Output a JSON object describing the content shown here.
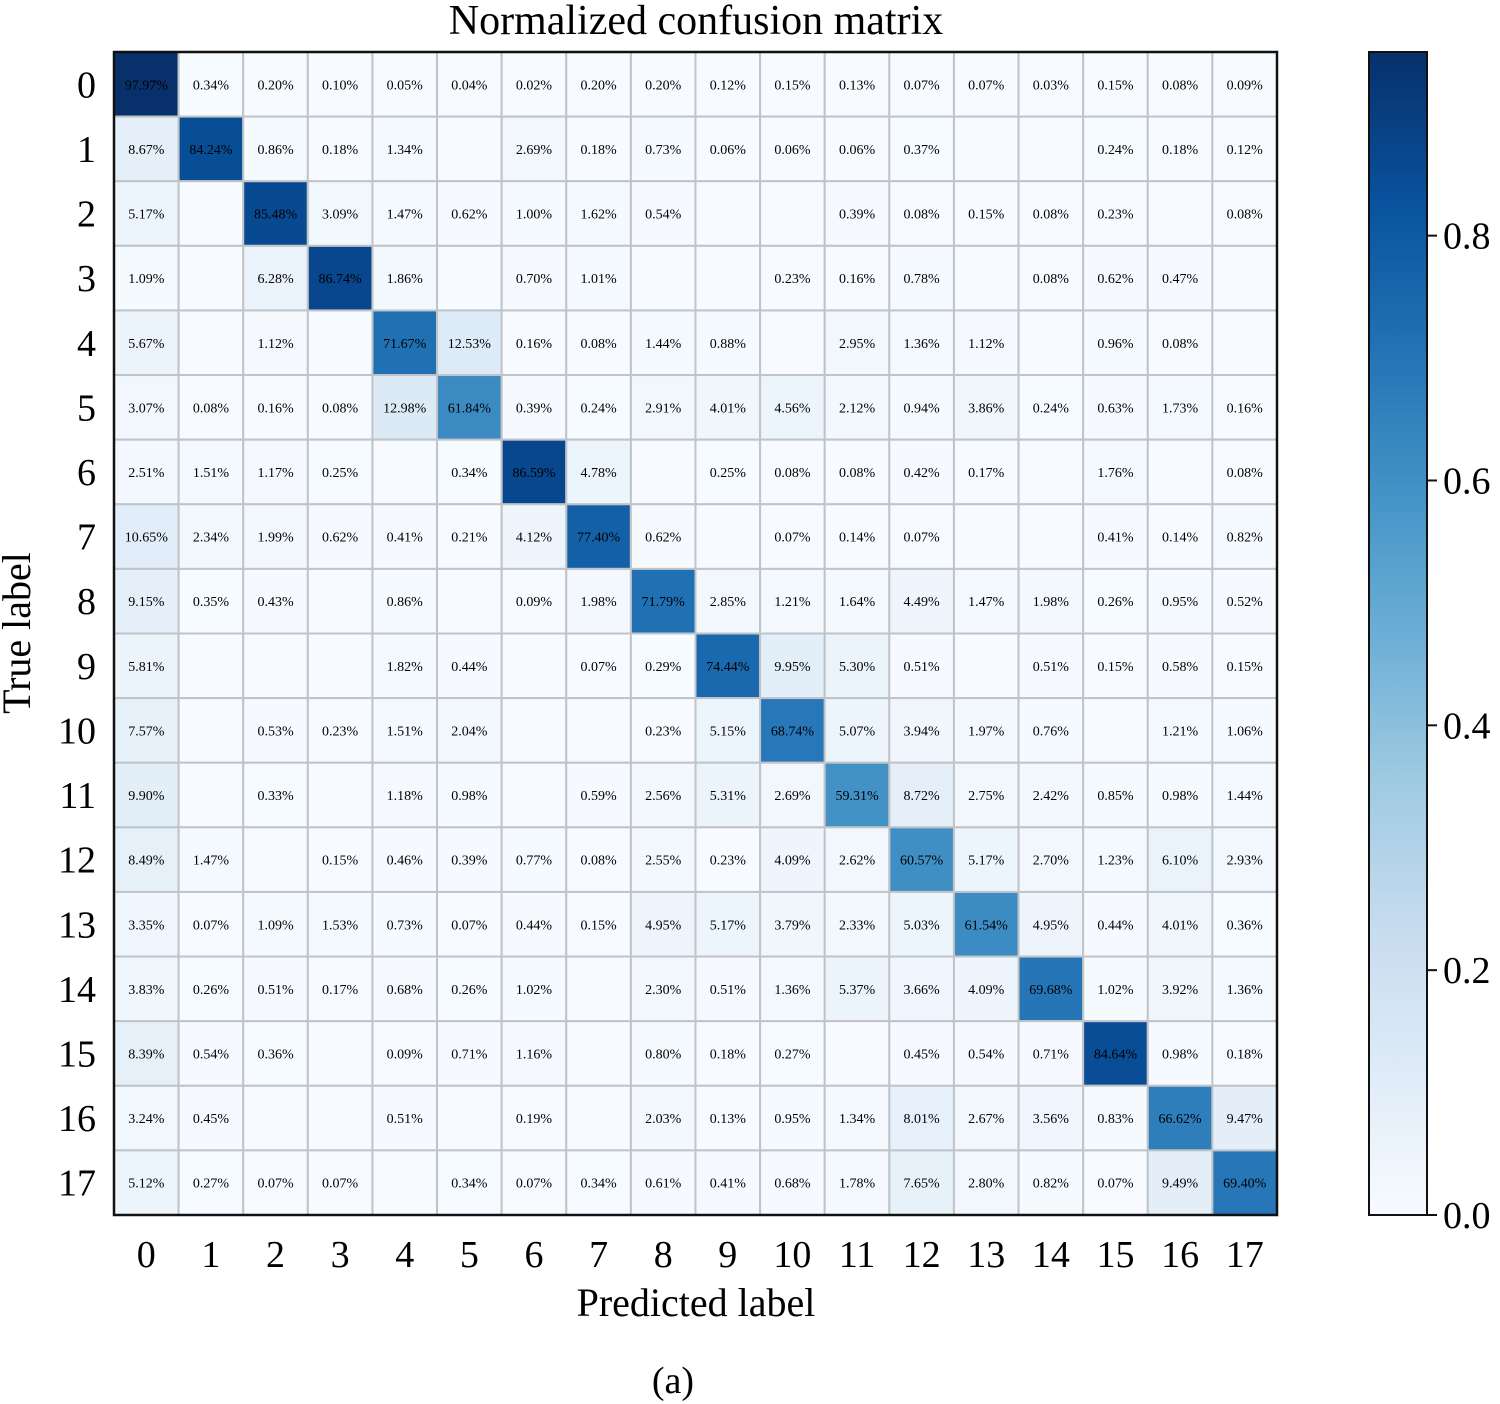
{
  "chart_data": {
    "type": "heatmap",
    "title": "Normalized confusion matrix",
    "xlabel": "Predicted label",
    "ylabel": "True label",
    "caption": "(a)",
    "row_labels": [
      "0",
      "1",
      "2",
      "3",
      "4",
      "5",
      "6",
      "7",
      "8",
      "9",
      "10",
      "11",
      "12",
      "13",
      "14",
      "15",
      "16",
      "17"
    ],
    "col_labels": [
      "0",
      "1",
      "2",
      "3",
      "4",
      "5",
      "6",
      "7",
      "8",
      "9",
      "10",
      "11",
      "12",
      "13",
      "14",
      "15",
      "16",
      "17"
    ],
    "values": [
      [
        97.97,
        0.34,
        0.2,
        0.1,
        0.05,
        0.04,
        0.02,
        0.2,
        0.2,
        0.12,
        0.15,
        0.13,
        0.07,
        0.07,
        0.03,
        0.15,
        0.08,
        0.09
      ],
      [
        8.67,
        84.24,
        0.86,
        0.18,
        1.34,
        null,
        2.69,
        0.18,
        0.73,
        0.06,
        0.06,
        0.06,
        0.37,
        null,
        null,
        0.24,
        0.18,
        0.12
      ],
      [
        5.17,
        null,
        85.48,
        3.09,
        1.47,
        0.62,
        1.0,
        1.62,
        0.54,
        null,
        null,
        0.39,
        0.08,
        0.15,
        0.08,
        0.23,
        null,
        0.08
      ],
      [
        1.09,
        null,
        6.28,
        86.74,
        1.86,
        null,
        0.7,
        1.01,
        null,
        null,
        0.23,
        0.16,
        0.78,
        null,
        0.08,
        0.62,
        0.47,
        null
      ],
      [
        5.67,
        null,
        1.12,
        null,
        71.67,
        12.53,
        0.16,
        0.08,
        1.44,
        0.88,
        null,
        2.95,
        1.36,
        1.12,
        null,
        0.96,
        0.08,
        null
      ],
      [
        3.07,
        0.08,
        0.16,
        0.08,
        12.98,
        61.84,
        0.39,
        0.24,
        2.91,
        4.01,
        4.56,
        2.12,
        0.94,
        3.86,
        0.24,
        0.63,
        1.73,
        0.16
      ],
      [
        2.51,
        1.51,
        1.17,
        0.25,
        null,
        0.34,
        86.59,
        4.78,
        null,
        0.25,
        0.08,
        0.08,
        0.42,
        0.17,
        null,
        1.76,
        null,
        0.08
      ],
      [
        10.65,
        2.34,
        1.99,
        0.62,
        0.41,
        0.21,
        4.12,
        77.4,
        0.62,
        null,
        0.07,
        0.14,
        0.07,
        null,
        null,
        0.41,
        0.14,
        0.82
      ],
      [
        9.15,
        0.35,
        0.43,
        null,
        0.86,
        null,
        0.09,
        1.98,
        71.79,
        2.85,
        1.21,
        1.64,
        4.49,
        1.47,
        1.98,
        0.26,
        0.95,
        0.52
      ],
      [
        5.81,
        null,
        null,
        null,
        1.82,
        0.44,
        null,
        0.07,
        0.29,
        74.44,
        9.95,
        5.3,
        0.51,
        null,
        0.51,
        0.15,
        0.58,
        0.15
      ],
      [
        7.57,
        null,
        0.53,
        0.23,
        1.51,
        2.04,
        null,
        null,
        0.23,
        5.15,
        68.74,
        5.07,
        3.94,
        1.97,
        0.76,
        null,
        1.21,
        1.06
      ],
      [
        9.9,
        null,
        0.33,
        null,
        1.18,
        0.98,
        null,
        0.59,
        2.56,
        5.31,
        2.69,
        59.31,
        8.72,
        2.75,
        2.42,
        0.85,
        0.98,
        1.44
      ],
      [
        8.49,
        1.47,
        null,
        0.15,
        0.46,
        0.39,
        0.77,
        0.08,
        2.55,
        0.23,
        4.09,
        2.62,
        60.57,
        5.17,
        2.7,
        1.23,
        6.1,
        2.93
      ],
      [
        3.35,
        0.07,
        1.09,
        1.53,
        0.73,
        0.07,
        0.44,
        0.15,
        4.95,
        5.17,
        3.79,
        2.33,
        5.03,
        61.54,
        4.95,
        0.44,
        4.01,
        0.36
      ],
      [
        3.83,
        0.26,
        0.51,
        0.17,
        0.68,
        0.26,
        1.02,
        null,
        2.3,
        0.51,
        1.36,
        5.37,
        3.66,
        4.09,
        69.68,
        1.02,
        3.92,
        1.36
      ],
      [
        8.39,
        0.54,
        0.36,
        null,
        0.09,
        0.71,
        1.16,
        null,
        0.8,
        0.18,
        0.27,
        null,
        0.45,
        0.54,
        0.71,
        84.64,
        0.98,
        0.18
      ],
      [
        3.24,
        0.45,
        null,
        null,
        0.51,
        null,
        0.19,
        null,
        2.03,
        0.13,
        0.95,
        1.34,
        8.01,
        2.67,
        3.56,
        0.83,
        66.62,
        9.47
      ],
      [
        5.12,
        0.27,
        0.07,
        0.07,
        null,
        0.34,
        0.07,
        0.34,
        0.61,
        0.41,
        0.68,
        1.78,
        7.65,
        2.8,
        0.82,
        0.07,
        9.49,
        69.4
      ]
    ],
    "value_format": "percent_2dp",
    "colormap": "Blues",
    "colorbar": {
      "range": [
        0.0,
        0.95
      ],
      "ticks": [
        0.0,
        0.2,
        0.4,
        0.6,
        0.8
      ],
      "tick_labels": [
        "0.0",
        "0.2",
        "0.4",
        "0.6",
        "0.8"
      ]
    },
    "grid": true,
    "grid_color": "#c0c4c8"
  }
}
